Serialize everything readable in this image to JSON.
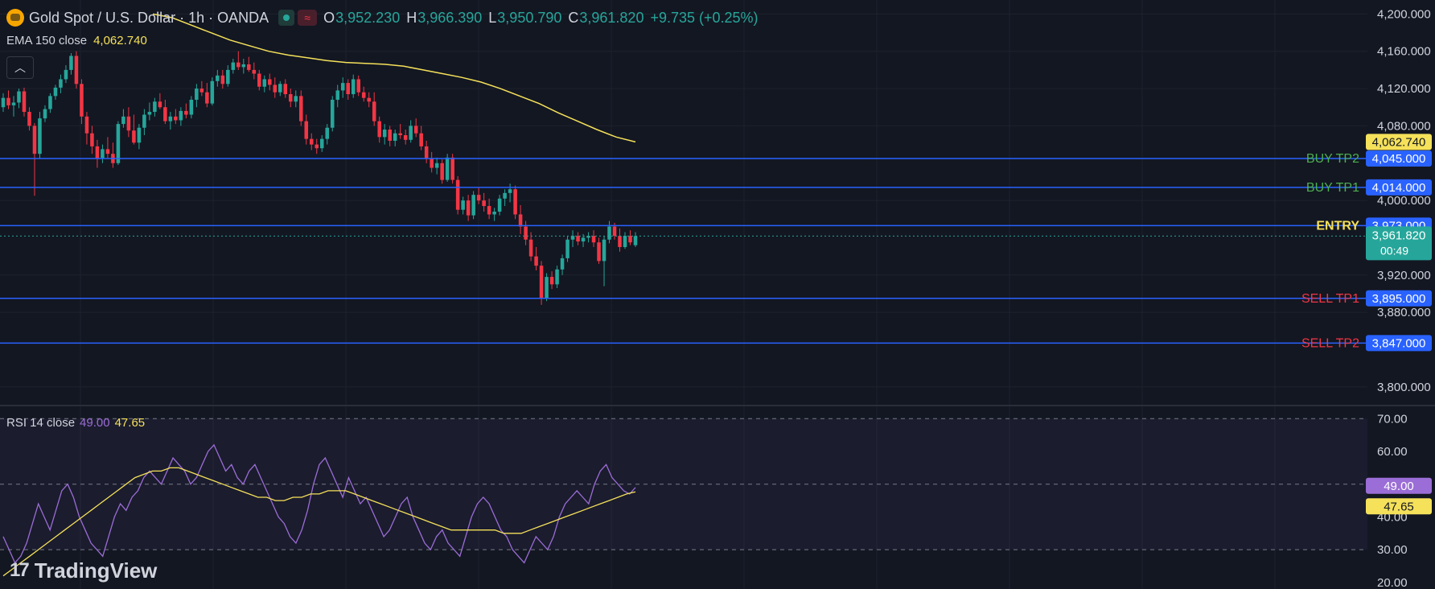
{
  "header": {
    "title": "Gold Spot / U.S. Dollar · 1h · OANDA",
    "open_label": "O",
    "open": "3,952.230",
    "high_label": "H",
    "high": "3,966.390",
    "low_label": "L",
    "low": "3,950.790",
    "close_label": "C",
    "close": "3,961.820",
    "change": "+9.735 (+0.25%)"
  },
  "ema": {
    "label": "EMA 150 close",
    "value": "4,062.740"
  },
  "rsi": {
    "label": "RSI 14 close",
    "value": "49.00",
    "ma_value": "47.65"
  },
  "brand": {
    "name": "TradingView",
    "mark": "17"
  },
  "colors": {
    "background": "#131722",
    "up": "#26a69a",
    "down": "#f23645",
    "ema": "#f5e15a",
    "rsi": "#9b6dd6",
    "level": "#2962ff"
  },
  "chart_data": [
    {
      "type": "candlestick",
      "ylim": [
        3780,
        4215
      ],
      "y_ticks": [
        "4,200.000",
        "4,160.000",
        "4,120.000",
        "4,080.000",
        "4,000.000",
        "3,920.000",
        "3,880.000",
        "3,800.000"
      ],
      "y_tick_values": [
        4200,
        4160,
        4120,
        4080,
        4000,
        3920,
        3880,
        3800
      ],
      "candles": [
        [
          4100,
          4115,
          4095,
          4110
        ],
        [
          4110,
          4118,
          4098,
          4102
        ],
        [
          4102,
          4112,
          4090,
          4105
        ],
        [
          4105,
          4120,
          4099,
          4117
        ],
        [
          4117,
          4121,
          4090,
          4095
        ],
        [
          4095,
          4100,
          4075,
          4080
        ],
        [
          4080,
          4083,
          4005,
          4050
        ],
        [
          4050,
          4095,
          4045,
          4088
        ],
        [
          4088,
          4102,
          4084,
          4098
        ],
        [
          4098,
          4115,
          4094,
          4112
        ],
        [
          4112,
          4124,
          4108,
          4121
        ],
        [
          4121,
          4135,
          4115,
          4130
        ],
        [
          4130,
          4145,
          4126,
          4140
        ],
        [
          4140,
          4158,
          4135,
          4155
        ],
        [
          4155,
          4160,
          4120,
          4125
        ],
        [
          4125,
          4130,
          4082,
          4090
        ],
        [
          4090,
          4095,
          4060,
          4072
        ],
        [
          4072,
          4080,
          4050,
          4058
        ],
        [
          4058,
          4065,
          4035,
          4045
        ],
        [
          4045,
          4060,
          4040,
          4055
        ],
        [
          4055,
          4068,
          4045,
          4050
        ],
        [
          4050,
          4062,
          4035,
          4040
        ],
        [
          4040,
          4085,
          4038,
          4082
        ],
        [
          4082,
          4098,
          4078,
          4090
        ],
        [
          4090,
          4100,
          4068,
          4075
        ],
        [
          4075,
          4092,
          4060,
          4062
        ],
        [
          4062,
          4082,
          4055,
          4078
        ],
        [
          4078,
          4098,
          4070,
          4092
        ],
        [
          4092,
          4105,
          4086,
          4095
        ],
        [
          4095,
          4110,
          4090,
          4106
        ],
        [
          4106,
          4115,
          4098,
          4100
        ],
        [
          4100,
          4108,
          4082,
          4085
        ],
        [
          4085,
          4095,
          4076,
          4090
        ],
        [
          4090,
          4098,
          4082,
          4086
        ],
        [
          4086,
          4100,
          4080,
          4096
        ],
        [
          4096,
          4104,
          4088,
          4092
        ],
        [
          4092,
          4112,
          4088,
          4108
        ],
        [
          4108,
          4125,
          4100,
          4120
        ],
        [
          4120,
          4128,
          4112,
          4116
        ],
        [
          4116,
          4126,
          4100,
          4104
        ],
        [
          4104,
          4132,
          4102,
          4128
        ],
        [
          4128,
          4140,
          4122,
          4134
        ],
        [
          4134,
          4140,
          4120,
          4125
        ],
        [
          4125,
          4145,
          4122,
          4140
        ],
        [
          4140,
          4152,
          4136,
          4148
        ],
        [
          4148,
          4160,
          4140,
          4143
        ],
        [
          4143,
          4152,
          4136,
          4146
        ],
        [
          4146,
          4154,
          4138,
          4140
        ],
        [
          4140,
          4148,
          4130,
          4136
        ],
        [
          4136,
          4140,
          4118,
          4122
        ],
        [
          4122,
          4134,
          4116,
          4130
        ],
        [
          4130,
          4136,
          4118,
          4124
        ],
        [
          4124,
          4132,
          4110,
          4116
        ],
        [
          4116,
          4128,
          4112,
          4125
        ],
        [
          4125,
          4130,
          4110,
          4114
        ],
        [
          4114,
          4120,
          4100,
          4106
        ],
        [
          4106,
          4118,
          4100,
          4112
        ],
        [
          4112,
          4118,
          4080,
          4085
        ],
        [
          4085,
          4092,
          4060,
          4066
        ],
        [
          4066,
          4072,
          4054,
          4060
        ],
        [
          4060,
          4066,
          4050,
          4056
        ],
        [
          4056,
          4070,
          4052,
          4066
        ],
        [
          4066,
          4082,
          4060,
          4078
        ],
        [
          4078,
          4112,
          4074,
          4108
        ],
        [
          4108,
          4124,
          4100,
          4118
        ],
        [
          4118,
          4132,
          4110,
          4126
        ],
        [
          4126,
          4130,
          4108,
          4114
        ],
        [
          4114,
          4135,
          4110,
          4130
        ],
        [
          4130,
          4134,
          4112,
          4116
        ],
        [
          4116,
          4122,
          4106,
          4110
        ],
        [
          4110,
          4116,
          4100,
          4106
        ],
        [
          4106,
          4116,
          4080,
          4085
        ],
        [
          4085,
          4090,
          4062,
          4068
        ],
        [
          4068,
          4082,
          4060,
          4076
        ],
        [
          4076,
          4080,
          4058,
          4064
        ],
        [
          4064,
          4076,
          4058,
          4072
        ],
        [
          4072,
          4082,
          4066,
          4070
        ],
        [
          4070,
          4076,
          4060,
          4065
        ],
        [
          4065,
          4086,
          4062,
          4080
        ],
        [
          4080,
          4088,
          4068,
          4072
        ],
        [
          4072,
          4080,
          4054,
          4058
        ],
        [
          4058,
          4064,
          4040,
          4045
        ],
        [
          4045,
          4052,
          4030,
          4035
        ],
        [
          4035,
          4046,
          4028,
          4040
        ],
        [
          4040,
          4044,
          4018,
          4022
        ],
        [
          4022,
          4050,
          4020,
          4046
        ],
        [
          4046,
          4050,
          4018,
          4022
        ],
        [
          4022,
          4026,
          3985,
          3990
        ],
        [
          3990,
          4004,
          3985,
          4000
        ],
        [
          4000,
          4006,
          3978,
          3984
        ],
        [
          3984,
          4010,
          3980,
          4006
        ],
        [
          4006,
          4014,
          3996,
          4000
        ],
        [
          4000,
          4008,
          3988,
          3994
        ],
        [
          3994,
          4002,
          3980,
          3985
        ],
        [
          3985,
          3992,
          3978,
          3988
        ],
        [
          3988,
          4006,
          3984,
          4002
        ],
        [
          4002,
          4012,
          3994,
          4008
        ],
        [
          4008,
          4018,
          3998,
          4012
        ],
        [
          4012,
          4016,
          3980,
          3985
        ],
        [
          3985,
          3995,
          3964,
          3972
        ],
        [
          3972,
          3978,
          3952,
          3958
        ],
        [
          3958,
          3966,
          3935,
          3940
        ],
        [
          3940,
          3950,
          3925,
          3930
        ],
        [
          3930,
          3935,
          3888,
          3895
        ],
        [
          3895,
          3922,
          3892,
          3918
        ],
        [
          3918,
          3924,
          3905,
          3910
        ],
        [
          3910,
          3930,
          3906,
          3926
        ],
        [
          3926,
          3942,
          3920,
          3938
        ],
        [
          3938,
          3962,
          3934,
          3958
        ],
        [
          3958,
          3968,
          3950,
          3962
        ],
        [
          3962,
          3966,
          3952,
          3956
        ],
        [
          3956,
          3964,
          3950,
          3960
        ],
        [
          3960,
          3966,
          3955,
          3962
        ],
        [
          3962,
          3968,
          3950,
          3955
        ],
        [
          3955,
          3960,
          3932,
          3935
        ],
        [
          3935,
          3962,
          3908,
          3958
        ],
        [
          3958,
          3978,
          3954,
          3972
        ],
        [
          3972,
          3976,
          3958,
          3962
        ],
        [
          3962,
          3970,
          3945,
          3950
        ],
        [
          3950,
          3966,
          3948,
          3962
        ],
        [
          3962,
          3968,
          3952,
          3955
        ],
        [
          3952,
          3966,
          3950,
          3961.82
        ]
      ],
      "ema": [
        4200,
        4196,
        4188,
        4180,
        4172,
        4166,
        4160,
        4156,
        4153,
        4150,
        4148,
        4147,
        4146,
        4144,
        4140,
        4136,
        4132,
        4127,
        4120,
        4112,
        4104,
        4094,
        4085,
        4076,
        4068,
        4062.74
      ],
      "levels": [
        {
          "name": "BUY TP2",
          "price": 4045,
          "price_label": "4,045.000",
          "color": "#4caf50"
        },
        {
          "name": "BUY TP1",
          "price": 4014,
          "price_label": "4,014.000",
          "color": "#4caf50"
        },
        {
          "name": "ENTRY",
          "price": 3973,
          "price_label": "3,973.000",
          "color": "#f5e15a"
        },
        {
          "name": "SELL TP1",
          "price": 3895,
          "price_label": "3,895.000",
          "color": "#f23645"
        },
        {
          "name": "SELL TP2",
          "price": 3847,
          "price_label": "3,847.000",
          "color": "#f23645"
        }
      ],
      "ema_badge": "4,062.740",
      "last_price": {
        "value": 3961.82,
        "label": "3,961.820",
        "countdown": "00:49"
      }
    },
    {
      "type": "line",
      "name": "RSI 14 close",
      "ylim": [
        18,
        74
      ],
      "y_ticks": [
        "70.00",
        "60.00",
        "40.00",
        "30.00",
        "20.00"
      ],
      "y_tick_values": [
        70,
        60,
        40,
        30,
        20
      ],
      "band": [
        30,
        70
      ],
      "rsi": [
        34,
        30,
        26,
        28,
        32,
        38,
        44,
        40,
        36,
        42,
        48,
        50,
        46,
        40,
        36,
        32,
        30,
        28,
        34,
        40,
        44,
        42,
        46,
        48,
        52,
        54,
        52,
        50,
        54,
        58,
        56,
        54,
        50,
        52,
        56,
        60,
        62,
        58,
        54,
        56,
        52,
        50,
        54,
        56,
        52,
        48,
        44,
        40,
        38,
        34,
        32,
        36,
        42,
        50,
        56,
        58,
        54,
        50,
        46,
        52,
        48,
        44,
        46,
        42,
        38,
        34,
        36,
        40,
        44,
        46,
        40,
        36,
        32,
        30,
        34,
        36,
        32,
        30,
        28,
        34,
        40,
        44,
        46,
        44,
        40,
        36,
        34,
        30,
        28,
        26,
        30,
        34,
        32,
        30,
        34,
        40,
        44,
        46,
        48,
        46,
        44,
        50,
        54,
        56,
        52,
        50,
        48,
        47,
        49
      ],
      "rsi_ma": [
        22,
        24,
        26,
        28,
        30,
        32,
        34,
        36,
        38,
        40,
        42,
        44,
        46,
        48,
        50,
        52,
        53,
        54,
        54,
        55,
        55,
        54,
        53,
        52,
        51,
        50,
        49,
        48,
        47,
        46,
        46,
        45,
        45,
        46,
        46,
        47,
        47,
        48,
        48,
        48,
        47,
        46,
        45,
        44,
        43,
        42,
        41,
        40,
        39,
        38,
        37,
        36,
        36,
        36,
        36,
        36,
        36,
        35,
        35,
        35,
        36,
        37,
        38,
        39,
        40,
        41,
        42,
        43,
        44,
        45,
        46,
        47,
        47.65
      ],
      "rsi_badge": "49.00",
      "ma_badge": "47.65"
    }
  ]
}
